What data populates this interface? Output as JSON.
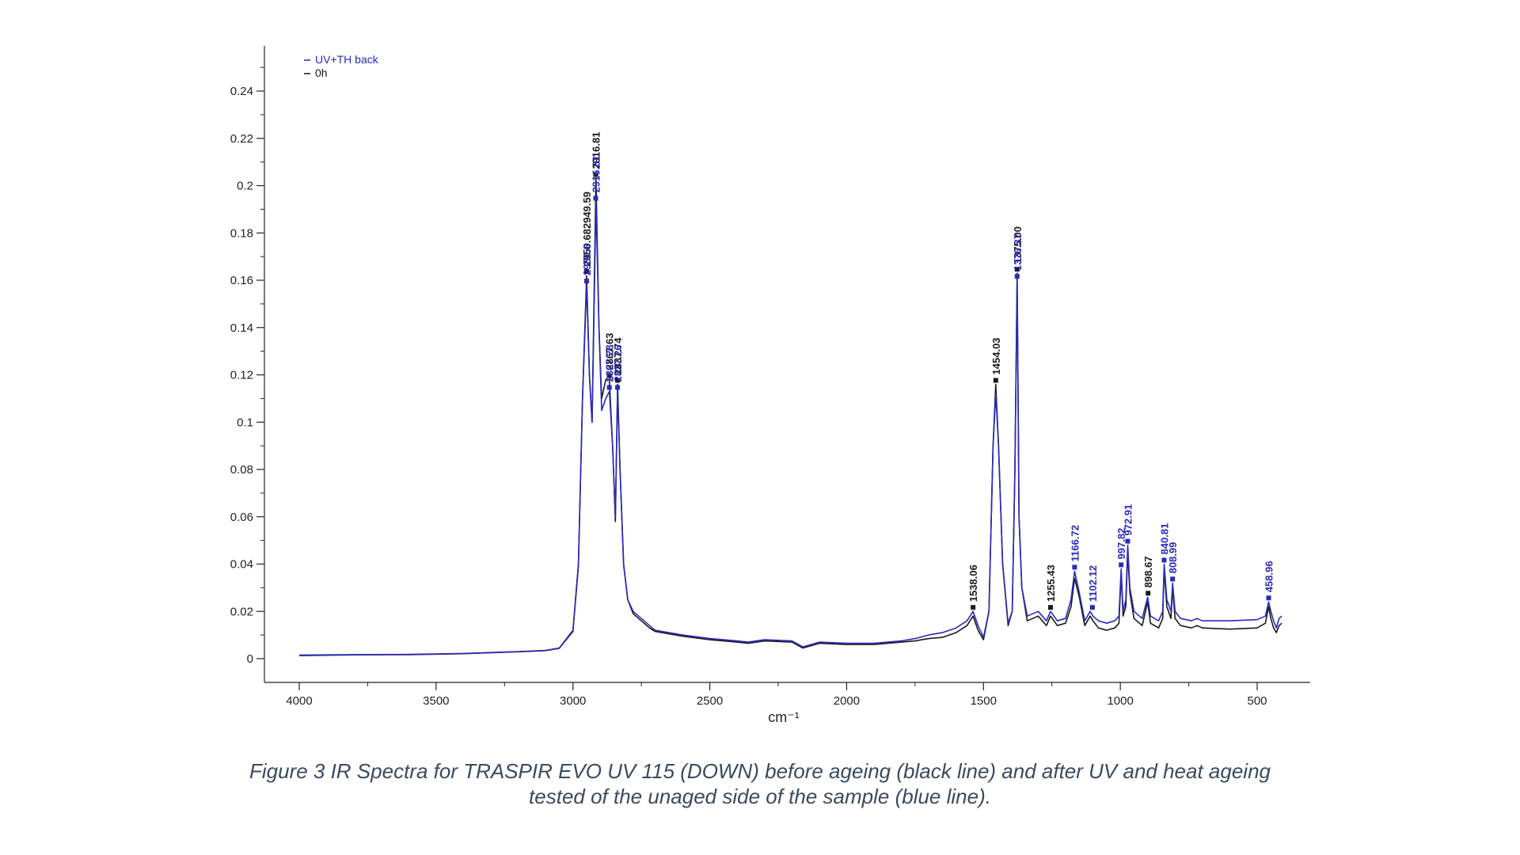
{
  "chart_data": {
    "type": "line",
    "xlabel": "cm⁻¹",
    "ylabel": "",
    "xlim": [
      4000,
      400
    ],
    "ylim": [
      0,
      0.25
    ],
    "x_reversed": true,
    "xticks": [
      4000,
      3500,
      3000,
      2500,
      2000,
      1500,
      1000,
      500
    ],
    "yticks": [
      0,
      0.02,
      0.04,
      0.06,
      0.08,
      0.1,
      0.12,
      0.14,
      0.16,
      0.18,
      0.2,
      0.22,
      0.24
    ],
    "ytick_labels": [
      "0",
      "0.02",
      "0.04",
      "0.06",
      "0.08",
      "0.1",
      "0.12",
      "0.14",
      "0.16",
      "0.18",
      "0.2",
      "0.22",
      "0.24"
    ],
    "legend_position": "top-left",
    "series": [
      {
        "name": "UV+TH back",
        "color": "#2a2ab8",
        "points": [
          [
            4000,
            0.0015
          ],
          [
            3800,
            0.0017
          ],
          [
            3600,
            0.0018
          ],
          [
            3400,
            0.0022
          ],
          [
            3200,
            0.003
          ],
          [
            3100,
            0.0035
          ],
          [
            3050,
            0.0045
          ],
          [
            3000,
            0.012
          ],
          [
            2980,
            0.04
          ],
          [
            2965,
            0.11
          ],
          [
            2950,
            0.158
          ],
          [
            2940,
            0.12
          ],
          [
            2930,
            0.1
          ],
          [
            2916,
            0.193
          ],
          [
            2905,
            0.14
          ],
          [
            2895,
            0.105
          ],
          [
            2880,
            0.11
          ],
          [
            2867,
            0.113
          ],
          [
            2855,
            0.09
          ],
          [
            2845,
            0.06
          ],
          [
            2837,
            0.113
          ],
          [
            2828,
            0.08
          ],
          [
            2815,
            0.04
          ],
          [
            2800,
            0.025
          ],
          [
            2780,
            0.02
          ],
          [
            2750,
            0.017
          ],
          [
            2720,
            0.014
          ],
          [
            2700,
            0.012
          ],
          [
            2600,
            0.01
          ],
          [
            2500,
            0.0085
          ],
          [
            2400,
            0.0075
          ],
          [
            2360,
            0.007
          ],
          [
            2300,
            0.008
          ],
          [
            2200,
            0.0075
          ],
          [
            2160,
            0.005
          ],
          [
            2100,
            0.007
          ],
          [
            2000,
            0.0065
          ],
          [
            1900,
            0.0065
          ],
          [
            1800,
            0.0075
          ],
          [
            1750,
            0.0085
          ],
          [
            1700,
            0.01
          ],
          [
            1650,
            0.011
          ],
          [
            1600,
            0.013
          ],
          [
            1560,
            0.016
          ],
          [
            1538,
            0.02
          ],
          [
            1520,
            0.014
          ],
          [
            1500,
            0.009
          ],
          [
            1480,
            0.02
          ],
          [
            1465,
            0.09
          ],
          [
            1455,
            0.112
          ],
          [
            1445,
            0.09
          ],
          [
            1430,
            0.04
          ],
          [
            1410,
            0.015
          ],
          [
            1395,
            0.02
          ],
          [
            1385,
            0.08
          ],
          [
            1377,
            0.16
          ],
          [
            1370,
            0.06
          ],
          [
            1360,
            0.03
          ],
          [
            1340,
            0.018
          ],
          [
            1300,
            0.02
          ],
          [
            1270,
            0.016
          ],
          [
            1255,
            0.02
          ],
          [
            1230,
            0.016
          ],
          [
            1200,
            0.017
          ],
          [
            1180,
            0.025
          ],
          [
            1167,
            0.037
          ],
          [
            1150,
            0.028
          ],
          [
            1130,
            0.016
          ],
          [
            1110,
            0.02
          ],
          [
            1100,
            0.018
          ],
          [
            1080,
            0.016
          ],
          [
            1050,
            0.015
          ],
          [
            1020,
            0.016
          ],
          [
            1005,
            0.018
          ],
          [
            997,
            0.038
          ],
          [
            990,
            0.02
          ],
          [
            980,
            0.025
          ],
          [
            973,
            0.048
          ],
          [
            965,
            0.03
          ],
          [
            950,
            0.02
          ],
          [
            920,
            0.017
          ],
          [
            900,
            0.026
          ],
          [
            890,
            0.018
          ],
          [
            860,
            0.016
          ],
          [
            845,
            0.02
          ],
          [
            840,
            0.04
          ],
          [
            830,
            0.025
          ],
          [
            815,
            0.02
          ],
          [
            809,
            0.032
          ],
          [
            800,
            0.02
          ],
          [
            780,
            0.017
          ],
          [
            740,
            0.016
          ],
          [
            720,
            0.017
          ],
          [
            700,
            0.016
          ],
          [
            600,
            0.016
          ],
          [
            500,
            0.0165
          ],
          [
            470,
            0.018
          ],
          [
            458,
            0.024
          ],
          [
            450,
            0.02
          ],
          [
            440,
            0.016
          ],
          [
            430,
            0.013
          ],
          [
            420,
            0.017
          ],
          [
            410,
            0.018
          ]
        ]
      },
      {
        "name": "0h",
        "color": "#1a1a1a",
        "points": [
          [
            4000,
            0.0013
          ],
          [
            3800,
            0.0016
          ],
          [
            3600,
            0.0017
          ],
          [
            3400,
            0.0021
          ],
          [
            3200,
            0.0029
          ],
          [
            3100,
            0.0034
          ],
          [
            3050,
            0.0044
          ],
          [
            3000,
            0.0115
          ],
          [
            2980,
            0.039
          ],
          [
            2965,
            0.11
          ],
          [
            2950,
            0.162
          ],
          [
            2940,
            0.12
          ],
          [
            2930,
            0.1
          ],
          [
            2916,
            0.203
          ],
          [
            2905,
            0.14
          ],
          [
            2895,
            0.11
          ],
          [
            2880,
            0.118
          ],
          [
            2867,
            0.118
          ],
          [
            2855,
            0.09
          ],
          [
            2845,
            0.058
          ],
          [
            2837,
            0.116
          ],
          [
            2828,
            0.08
          ],
          [
            2815,
            0.04
          ],
          [
            2800,
            0.025
          ],
          [
            2780,
            0.019
          ],
          [
            2750,
            0.016
          ],
          [
            2720,
            0.013
          ],
          [
            2700,
            0.0115
          ],
          [
            2600,
            0.0095
          ],
          [
            2500,
            0.008
          ],
          [
            2400,
            0.007
          ],
          [
            2360,
            0.0065
          ],
          [
            2300,
            0.0075
          ],
          [
            2200,
            0.007
          ],
          [
            2160,
            0.0045
          ],
          [
            2100,
            0.0065
          ],
          [
            2000,
            0.006
          ],
          [
            1900,
            0.006
          ],
          [
            1800,
            0.007
          ],
          [
            1750,
            0.0075
          ],
          [
            1700,
            0.0085
          ],
          [
            1650,
            0.009
          ],
          [
            1600,
            0.011
          ],
          [
            1560,
            0.014
          ],
          [
            1538,
            0.018
          ],
          [
            1520,
            0.012
          ],
          [
            1500,
            0.008
          ],
          [
            1480,
            0.02
          ],
          [
            1465,
            0.09
          ],
          [
            1455,
            0.116
          ],
          [
            1445,
            0.09
          ],
          [
            1430,
            0.04
          ],
          [
            1410,
            0.014
          ],
          [
            1395,
            0.02
          ],
          [
            1385,
            0.08
          ],
          [
            1377,
            0.163
          ],
          [
            1370,
            0.06
          ],
          [
            1360,
            0.03
          ],
          [
            1340,
            0.016
          ],
          [
            1300,
            0.018
          ],
          [
            1270,
            0.014
          ],
          [
            1255,
            0.018
          ],
          [
            1230,
            0.014
          ],
          [
            1200,
            0.015
          ],
          [
            1180,
            0.022
          ],
          [
            1167,
            0.034
          ],
          [
            1150,
            0.026
          ],
          [
            1130,
            0.014
          ],
          [
            1110,
            0.018
          ],
          [
            1100,
            0.016
          ],
          [
            1080,
            0.013
          ],
          [
            1050,
            0.012
          ],
          [
            1020,
            0.013
          ],
          [
            1005,
            0.015
          ],
          [
            997,
            0.036
          ],
          [
            990,
            0.018
          ],
          [
            980,
            0.022
          ],
          [
            973,
            0.045
          ],
          [
            965,
            0.028
          ],
          [
            950,
            0.017
          ],
          [
            920,
            0.014
          ],
          [
            900,
            0.024
          ],
          [
            890,
            0.015
          ],
          [
            860,
            0.013
          ],
          [
            845,
            0.017
          ],
          [
            840,
            0.038
          ],
          [
            830,
            0.022
          ],
          [
            815,
            0.017
          ],
          [
            809,
            0.03
          ],
          [
            800,
            0.017
          ],
          [
            780,
            0.014
          ],
          [
            740,
            0.013
          ],
          [
            720,
            0.014
          ],
          [
            700,
            0.013
          ],
          [
            600,
            0.0125
          ],
          [
            500,
            0.013
          ],
          [
            470,
            0.015
          ],
          [
            458,
            0.022
          ],
          [
            450,
            0.017
          ],
          [
            440,
            0.013
          ],
          [
            430,
            0.011
          ],
          [
            420,
            0.014
          ],
          [
            410,
            0.015
          ]
        ]
      }
    ],
    "peak_labels": [
      {
        "x": 2916.81,
        "y": 0.203,
        "text": "2916.81",
        "color": "#1a1a1a"
      },
      {
        "x": 2916.81,
        "y": 0.193,
        "text": "2916.81",
        "color": "#2a2ab8"
      },
      {
        "x": 2950,
        "y": 0.162,
        "text": "2950.682949.59",
        "color": "#1a1a1a"
      },
      {
        "x": 2950,
        "y": 0.158,
        "text": "2950.6",
        "color": "#2a2ab8"
      },
      {
        "x": 2867,
        "y": 0.118,
        "text": "2867.63",
        "color": "#1a1a1a"
      },
      {
        "x": 2867,
        "y": 0.113,
        "text": "2867.28",
        "color": "#2a2ab8"
      },
      {
        "x": 2837,
        "y": 0.116,
        "text": "2837.74",
        "color": "#1a1a1a"
      },
      {
        "x": 2837,
        "y": 0.113,
        "text": "2837.26",
        "color": "#2a2ab8"
      },
      {
        "x": 1538,
        "y": 0.02,
        "text": "1538.06",
        "color": "#1a1a1a"
      },
      {
        "x": 1455,
        "y": 0.116,
        "text": "1454.03",
        "color": "#1a1a1a"
      },
      {
        "x": 1377,
        "y": 0.163,
        "text": "1375.00",
        "color": "#1a1a1a"
      },
      {
        "x": 1377,
        "y": 0.16,
        "text": "1376.37",
        "color": "#2a2ab8"
      },
      {
        "x": 1255,
        "y": 0.02,
        "text": "1255.43",
        "color": "#1a1a1a"
      },
      {
        "x": 1167,
        "y": 0.037,
        "text": "1166.72",
        "color": "#2a2ab8"
      },
      {
        "x": 1102,
        "y": 0.02,
        "text": "1102.12",
        "color": "#2a2ab8"
      },
      {
        "x": 997,
        "y": 0.038,
        "text": "997.82",
        "color": "#2a2ab8"
      },
      {
        "x": 973,
        "y": 0.048,
        "text": "972.91",
        "color": "#2a2ab8"
      },
      {
        "x": 898.67,
        "y": 0.026,
        "text": "898.67",
        "color": "#1a1a1a"
      },
      {
        "x": 840,
        "y": 0.04,
        "text": "840.81",
        "color": "#2a2ab8"
      },
      {
        "x": 809,
        "y": 0.032,
        "text": "808.99",
        "color": "#2a2ab8"
      },
      {
        "x": 458,
        "y": 0.024,
        "text": "458.96",
        "color": "#2a2ab8"
      }
    ]
  },
  "caption": {
    "line1": "Figure 3 IR Spectra for TRASPIR EVO UV 115 (DOWN) before ageing (black line) and after UV and heat ageing",
    "line2": "tested of the unaged side of the sample (blue line)."
  }
}
